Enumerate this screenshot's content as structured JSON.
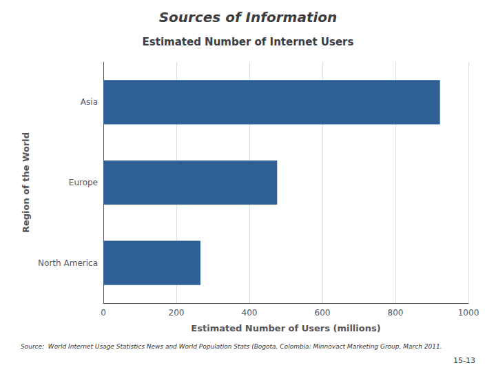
{
  "chart_data": {
    "type": "bar",
    "orientation": "horizontal",
    "title": "Sources of Information",
    "subtitle": "Estimated Number of Internet Users",
    "xlabel": "Estimated Number of Users (millions)",
    "ylabel": "Region of the World",
    "categories": [
      "North America",
      "Europe",
      "Asia"
    ],
    "values": [
      266,
      476,
      922
    ],
    "color": "#2E6096",
    "xlim": [
      0,
      1000
    ],
    "xticks": [
      0,
      200,
      400,
      600,
      800,
      1000
    ],
    "grid": true,
    "annotations": [
      "Source:  World Internet Usage Statistics News and World Population Stats (Bogota, Colombia: Minnovact Marketing Group, March 2011.",
      "15-13"
    ]
  }
}
